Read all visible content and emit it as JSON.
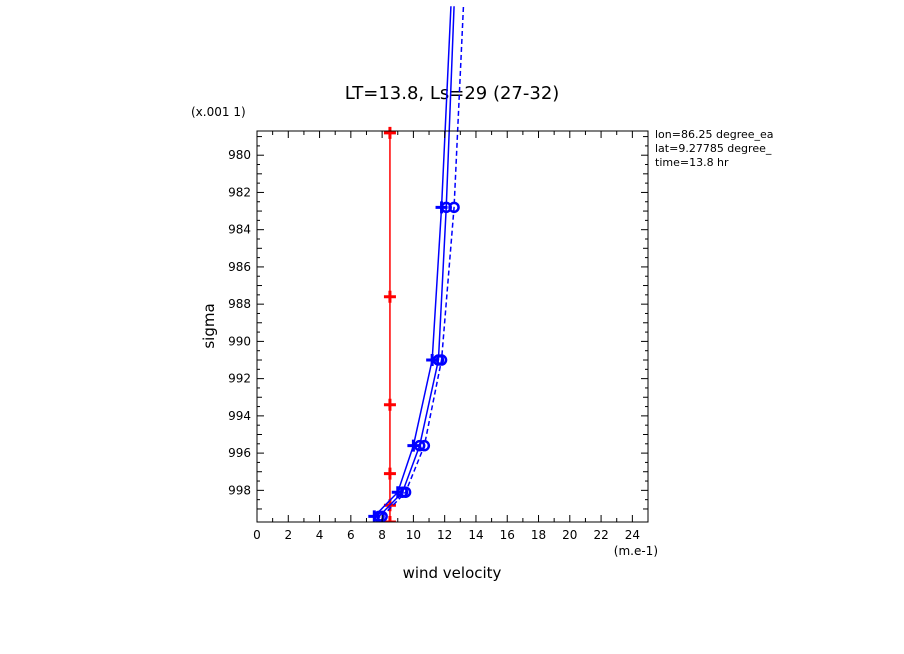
{
  "chart_data": {
    "type": "line",
    "title": "LT=13.8, Ls=29 (27-32)",
    "xlabel": "wind velocity",
    "ylabel": "sigma",
    "x_unit_label": "(m.e-1)",
    "y_unit_label": "(x.001 1)",
    "xlim": [
      0,
      25
    ],
    "ylim": [
      999.7,
      978.7
    ],
    "x_ticks": [
      "0",
      "2",
      "4",
      "6",
      "8",
      "10",
      "12",
      "14",
      "16",
      "18",
      "20",
      "22",
      "24"
    ],
    "x_tick_values": [
      0,
      2,
      4,
      6,
      8,
      10,
      12,
      14,
      16,
      18,
      20,
      22,
      24
    ],
    "y_ticks": [
      "980",
      "982",
      "984",
      "986",
      "988",
      "990",
      "992",
      "994",
      "996",
      "998"
    ],
    "y_tick_values": [
      980,
      982,
      984,
      986,
      988,
      990,
      992,
      994,
      996,
      998
    ],
    "grid": false,
    "info_lines": [
      "lon=86.25 degree_ea",
      "lat=9.27785 degree_",
      "time=13.8 hr"
    ],
    "series": [
      {
        "color": "#ff0000",
        "style": "solid",
        "marker": "plus",
        "x": [
          8.5,
          8.5,
          8.5,
          8.5,
          8.5,
          8.5
        ],
        "y": [
          978.8,
          987.6,
          993.4,
          997.1,
          998.8,
          999.7
        ]
      },
      {
        "color": "#0000ff",
        "style": "solid",
        "marker": "plus",
        "x": [
          7.5,
          9.0,
          10.0,
          11.2,
          11.8,
          12.4
        ],
        "y": [
          999.4,
          998.1,
          995.6,
          991.0,
          982.8,
          972.0
        ]
      },
      {
        "color": "#0000ff",
        "style": "solid",
        "marker": "circle",
        "x": [
          7.8,
          9.3,
          10.4,
          11.6,
          12.1,
          12.6
        ],
        "y": [
          999.4,
          998.1,
          995.6,
          991.0,
          982.8,
          972.0
        ]
      },
      {
        "color": "#0000ff",
        "style": "dashed",
        "marker": "circle",
        "x": [
          8.0,
          9.5,
          10.7,
          11.8,
          12.6,
          13.2
        ],
        "y": [
          999.4,
          998.1,
          995.6,
          991.0,
          982.8,
          972.0
        ]
      }
    ]
  }
}
